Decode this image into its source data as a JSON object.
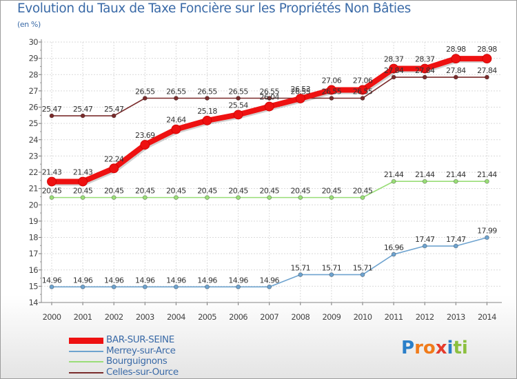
{
  "chart_data": {
    "type": "line",
    "title": "Evolution du Taux de Taxe Foncière sur les Propriétés Non Bâties",
    "unit_label": "(en %)",
    "x": [
      "2000",
      "2001",
      "2002",
      "2003",
      "2004",
      "2005",
      "2006",
      "2007",
      "2008",
      "2009",
      "2010",
      "2011",
      "2012",
      "2013",
      "2014"
    ],
    "ylim": [
      14,
      30
    ],
    "yticks": [
      "14",
      "15",
      "16",
      "17",
      "18",
      "19",
      "20",
      "21",
      "22",
      "23",
      "24",
      "25",
      "26",
      "27",
      "28",
      "29",
      "30"
    ],
    "grid": true,
    "series": [
      {
        "name": "Celles-sur-Ource",
        "color": "#7a2b2b",
        "values": [
          25.47,
          25.47,
          25.47,
          26.55,
          26.55,
          26.55,
          26.55,
          26.55,
          26.55,
          26.55,
          26.55,
          27.84,
          27.84,
          27.84,
          27.84
        ],
        "labels": [
          "25.47",
          "25.47",
          "25.47",
          "26.55",
          "26.55",
          "26.55",
          "26.55",
          "26.55",
          "26.55",
          "26.55",
          "26.55",
          "27.84",
          "27.84",
          "27.84",
          "27.84"
        ]
      },
      {
        "name": "Bourguignons",
        "color": "#99dd77",
        "values": [
          20.45,
          20.45,
          20.45,
          20.45,
          20.45,
          20.45,
          20.45,
          20.45,
          20.45,
          20.45,
          20.45,
          21.44,
          21.44,
          21.44,
          21.44
        ],
        "labels": [
          "20.45",
          "20.45",
          "20.45",
          "20.45",
          "20.45",
          "20.45",
          "20.45",
          "20.45",
          "20.45",
          "20.45",
          "20.45",
          "21.44",
          "21.44",
          "21.44",
          "21.44"
        ]
      },
      {
        "name": "Merrey-sur-Arce",
        "color": "#6ea3cf",
        "values": [
          14.96,
          14.96,
          14.96,
          14.96,
          14.96,
          14.96,
          14.96,
          14.96,
          15.71,
          15.71,
          15.71,
          16.96,
          17.47,
          17.47,
          17.99
        ],
        "labels": [
          "14.96",
          "14.96",
          "14.96",
          "14.96",
          "14.96",
          "14.96",
          "14.96",
          "14.96",
          "15.71",
          "15.71",
          "15.71",
          "16.96",
          "17.47",
          "17.47",
          "17.99"
        ]
      },
      {
        "name": "BAR-SUR-SEINE",
        "color": "#ee1111",
        "values": [
          21.43,
          21.43,
          22.24,
          23.69,
          24.64,
          25.18,
          25.54,
          26.04,
          26.53,
          27.06,
          27.06,
          28.37,
          28.37,
          28.98,
          28.98
        ],
        "labels": [
          "21.43",
          "21.43",
          "22.24",
          "23.69",
          "24.64",
          "25.18",
          "25.54",
          "26.04",
          "26.53",
          "27.06",
          "27.06",
          "28.37",
          "28.37",
          "28.98",
          "28.98"
        ]
      }
    ],
    "legend": [
      "BAR-SUR-SEINE",
      "Merrey-sur-Arce",
      "Bourguignons",
      "Celles-sur-Ource"
    ],
    "legend_position": "bottom-left"
  },
  "logo": {
    "letters": [
      "P",
      "r",
      "o",
      "x",
      "i",
      "t",
      "i"
    ]
  }
}
